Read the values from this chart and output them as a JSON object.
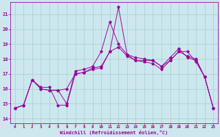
{
  "xlabel": "Windchill (Refroidissement éolien,°C)",
  "bg_color": "#cce8ee",
  "line_color": "#990099",
  "grid_color": "#aacccc",
  "xlim": [
    -0.5,
    23.5
  ],
  "ylim": [
    13.7,
    21.8
  ],
  "yticks": [
    14,
    15,
    16,
    17,
    18,
    19,
    20,
    21
  ],
  "xticks": [
    0,
    1,
    2,
    3,
    4,
    5,
    6,
    7,
    8,
    9,
    10,
    11,
    12,
    13,
    14,
    15,
    16,
    17,
    18,
    19,
    20,
    21,
    22,
    23
  ],
  "series1_x": [
    0,
    1,
    2,
    3,
    4,
    5,
    6,
    7,
    8,
    9,
    10,
    11,
    12,
    13,
    14,
    15,
    16,
    17,
    18,
    19,
    20,
    21,
    22,
    23
  ],
  "series1_y": [
    14.7,
    14.9,
    16.6,
    16.0,
    15.9,
    15.9,
    15.0,
    17.2,
    17.3,
    17.5,
    18.5,
    20.5,
    19.0,
    18.3,
    17.9,
    17.9,
    17.9,
    17.5,
    18.1,
    18.7,
    18.1,
    17.9,
    16.8,
    14.7
  ],
  "series2_x": [
    0,
    1,
    2,
    3,
    4,
    5,
    6,
    7,
    8,
    9,
    10,
    11,
    12,
    13,
    14,
    15,
    16,
    17,
    18,
    19,
    20,
    21,
    22,
    23
  ],
  "series2_y": [
    14.7,
    14.9,
    16.6,
    16.1,
    16.1,
    14.9,
    14.9,
    17.0,
    17.1,
    17.4,
    17.5,
    18.5,
    21.5,
    18.3,
    18.1,
    18.0,
    17.9,
    17.5,
    17.9,
    18.5,
    18.2,
    18.0,
    16.8,
    14.7
  ],
  "series3_x": [
    0,
    1,
    2,
    3,
    4,
    5,
    6,
    7,
    8,
    9,
    10,
    11,
    12,
    13,
    14,
    15,
    16,
    17,
    18,
    19,
    20,
    21,
    22,
    23
  ],
  "series3_y": [
    14.7,
    14.9,
    16.6,
    16.0,
    15.9,
    15.9,
    16.0,
    17.0,
    17.1,
    17.3,
    17.4,
    18.5,
    18.8,
    18.2,
    17.9,
    17.8,
    17.7,
    17.3,
    17.9,
    18.5,
    18.5,
    17.8,
    16.8,
    14.7
  ]
}
